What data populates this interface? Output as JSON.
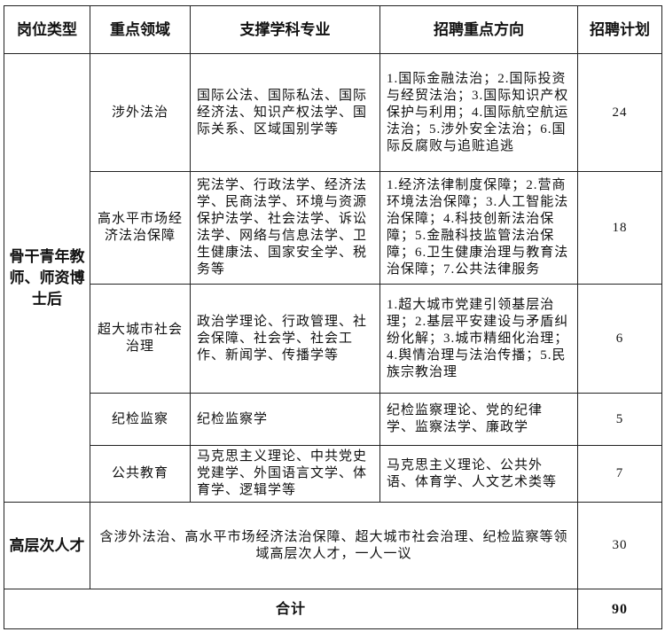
{
  "headers": [
    "岗位类型",
    "重点领域",
    "支撑学科专业",
    "招聘重点方向",
    "招聘计划"
  ],
  "group1": {
    "type": "骨干青年教师、师资博士后",
    "rows": [
      {
        "field": "涉外法治",
        "disciplines": "国际公法、国际私法、国际经济法、知识产权法学、国际关系、区域国别学等",
        "directions": "1.国际金融法治；2.国际投资与经贸法治；3.国际知识产权保护与利用；4.国际航空航运法治；5.涉外安全法治；6.国际反腐败与追赃追逃",
        "plan": "24"
      },
      {
        "field": "高水平市场经济法治保障",
        "disciplines": "宪法学、行政法学、经济法学、民商法学、环境与资源保护法学、社会法学、诉讼法学、网络与信息法学、卫生健康法、国家安全学、税务等",
        "directions": "1.经济法律制度保障；2.营商环境法治保障；3.人工智能法治保障；4.科技创新法治保障；5.金融科技监管法治保障；6.卫生健康治理与教育法治保障；7.公共法律服务",
        "plan": "18"
      },
      {
        "field": "超大城市社会治理",
        "disciplines": "政治学理论、行政管理、社会保障、社会学、社会工作、新闻学、传播学等",
        "directions": "1.超大城市党建引领基层治理；2.基层平安建设与矛盾纠纷化解；3.城市精细化治理；4.舆情治理与法治传播；5.民族宗教治理",
        "plan": "6"
      },
      {
        "field": "纪检监察",
        "disciplines": "纪检监察学",
        "directions": "纪检监察理论、党的纪律学、监察法学、廉政学",
        "plan": "5"
      },
      {
        "field": "公共教育",
        "disciplines": "马克思主义理论、中共党史党建学、外国语言文学、体育学、逻辑学等",
        "directions": "马克思主义理论、公共外语、体育学、人文艺术类等",
        "plan": "7"
      }
    ]
  },
  "group2": {
    "type": "高层次人才",
    "description": "含涉外法治、高水平市场经济法治保障、超大城市社会治理、纪检监察等领域高层次人才，一人一议",
    "plan": "30"
  },
  "total": {
    "label": "合计",
    "value": "90"
  }
}
